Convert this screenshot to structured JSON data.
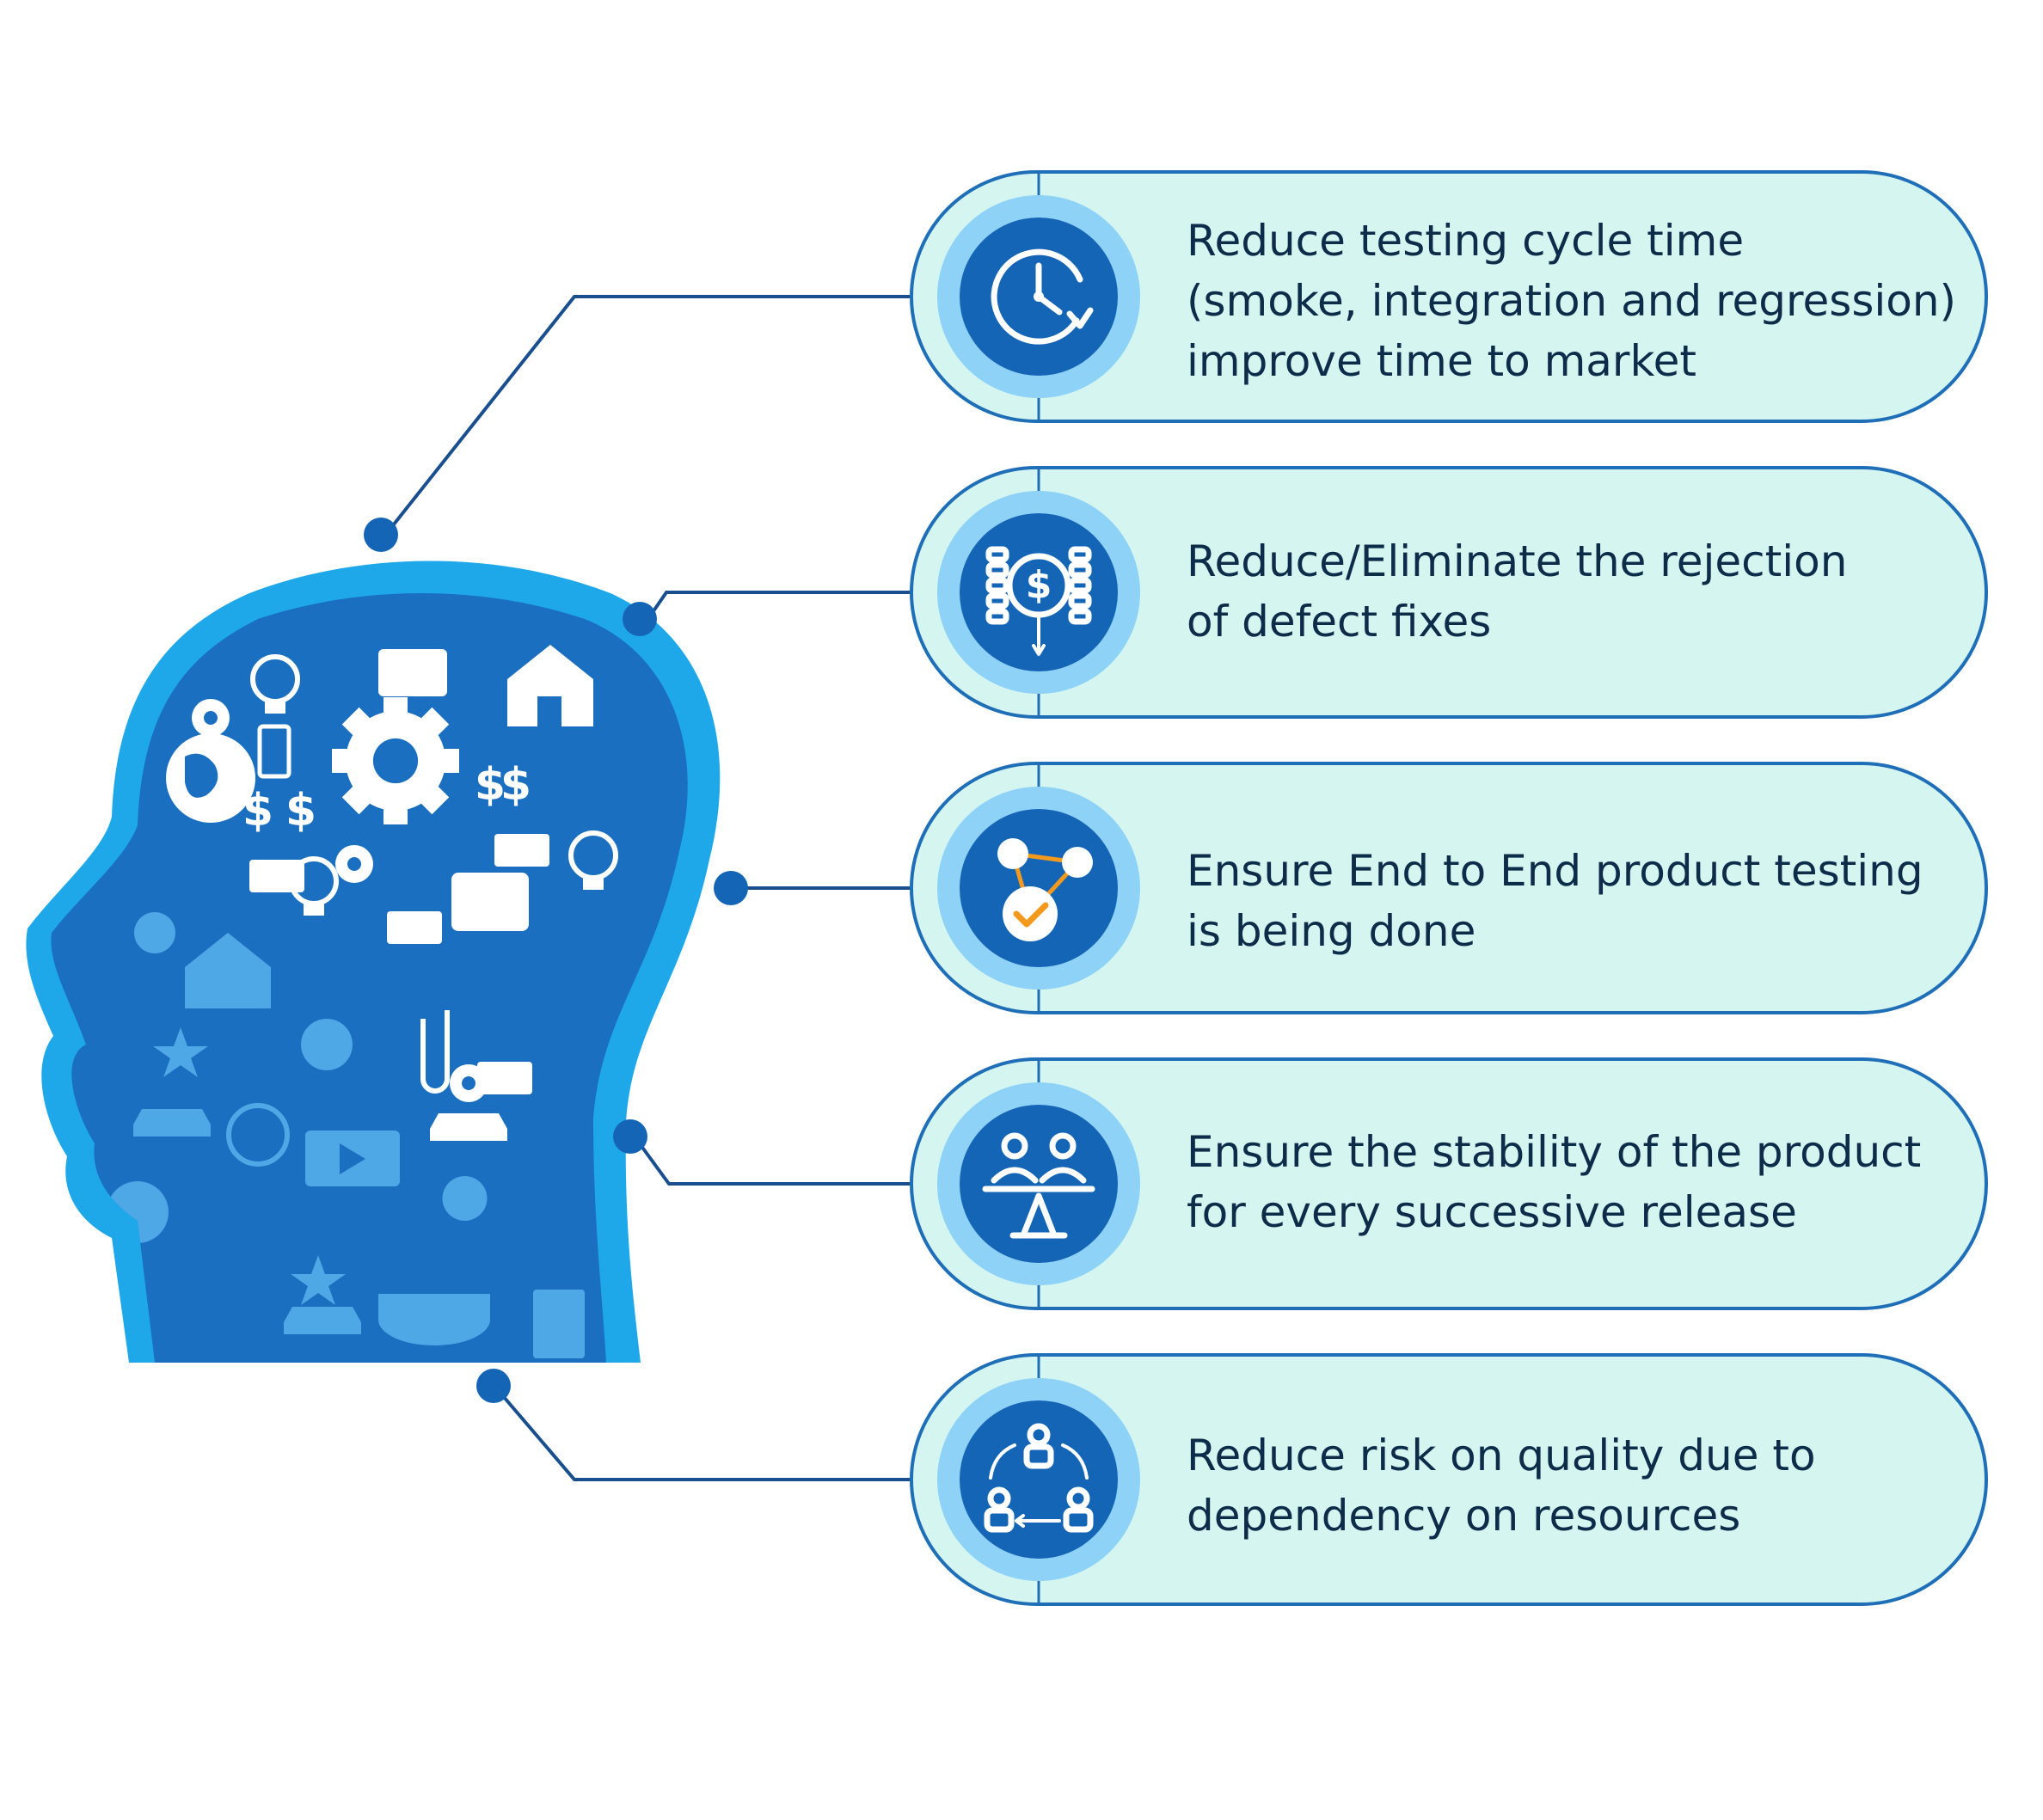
{
  "items": [
    {
      "icon": "clock-refresh-icon",
      "lines": [
        "Reduce testing cycle time",
        "(smoke, integration and regression)",
        "improve time to market"
      ]
    },
    {
      "icon": "coin-stack-dollar-icon",
      "lines": [
        "Reduce/Eliminate the rejection",
        "of defect fixes"
      ]
    },
    {
      "icon": "connected-nodes-check-icon",
      "lines": [
        "Ensure End to End product testing",
        "is being done"
      ]
    },
    {
      "icon": "balance-people-icon",
      "lines": [
        "Ensure the stability of the product",
        "for every successive release"
      ]
    },
    {
      "icon": "people-cycle-icon",
      "lines": [
        "Reduce risk on quality due to",
        "dependency on resources"
      ]
    }
  ],
  "colors": {
    "pill_fill": "#d5f6f0",
    "pill_border": "#1f6fb8",
    "icon_outer": "#8fd2f7",
    "icon_inner": "#1565b6",
    "head_outline": "#1ea8ea",
    "head_fill": "#1b6fc0",
    "connector": "#1a4f8f",
    "accent_check": "#f39a1e"
  }
}
